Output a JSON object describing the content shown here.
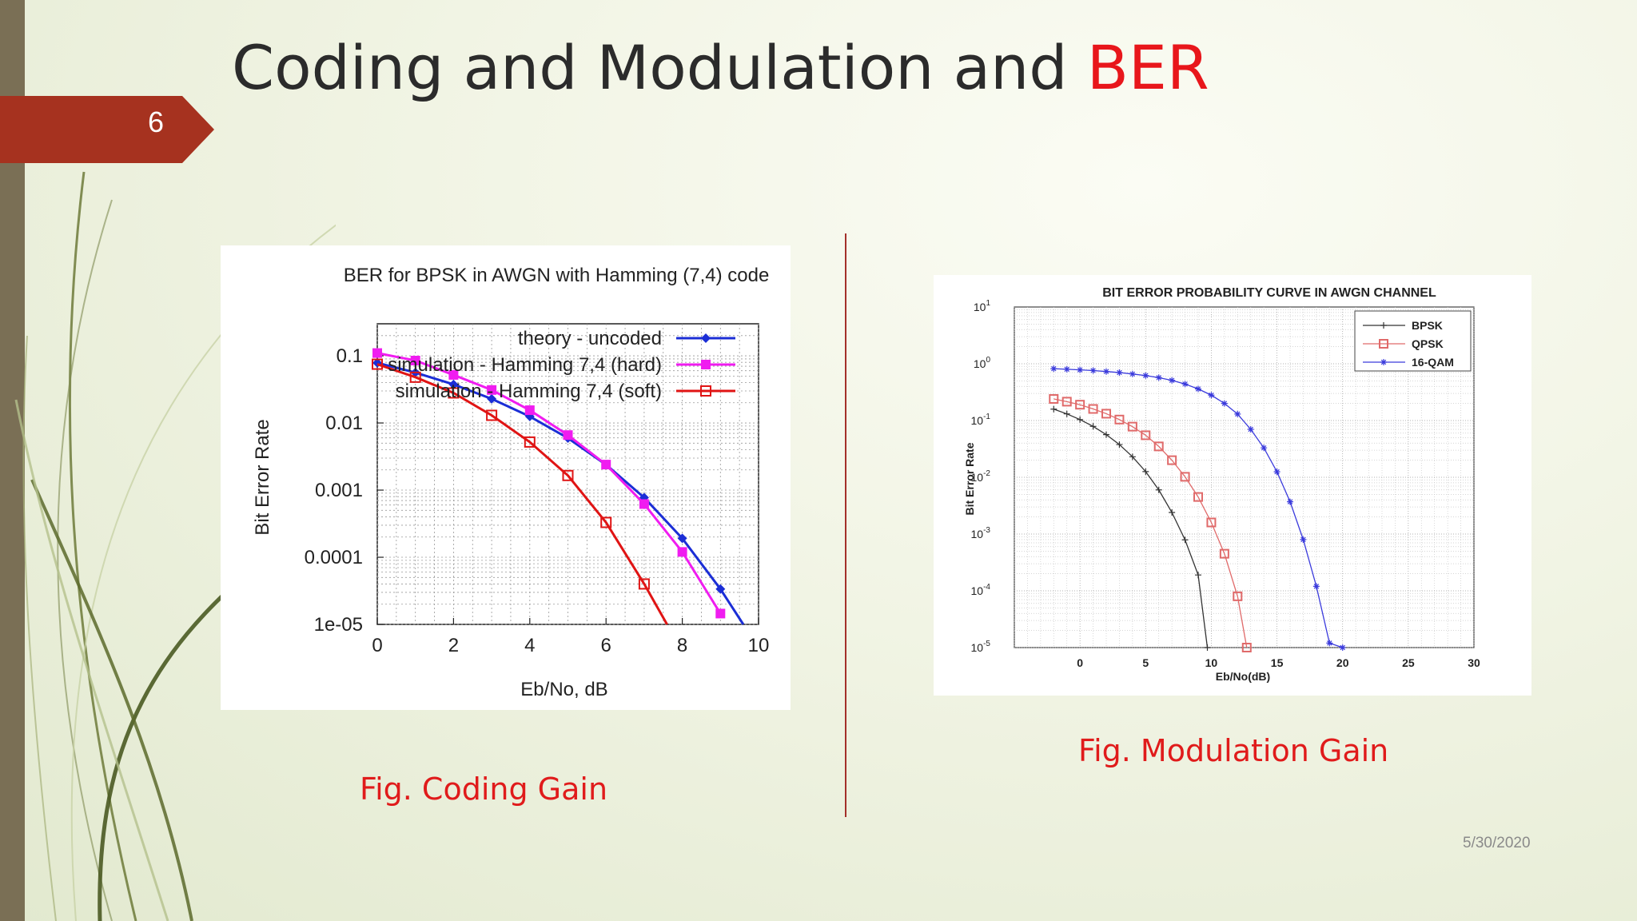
{
  "slide": {
    "number": "6",
    "title_part1": "Coding and Modulation and ",
    "title_part2": "BER",
    "date": "5/30/2020",
    "caption_left": "Fig. Coding Gain",
    "caption_right": "Fig. Modulation Gain"
  },
  "colors": {
    "accent": "#e8161b",
    "tab": "#a6321f",
    "bar": "#7a6f55"
  },
  "chart_data": [
    {
      "type": "line",
      "title": "BER for BPSK in AWGN with Hamming (7,4) code",
      "xlabel": "Eb/No, dB",
      "ylabel": "Bit Error Rate",
      "xlim": [
        0,
        10
      ],
      "ylim": [
        1e-05,
        0.3
      ],
      "yscale": "log",
      "xticks": [
        "0",
        "2",
        "4",
        "6",
        "8",
        "10"
      ],
      "yticks": [
        {
          "v": 0.1,
          "label": "0.1"
        },
        {
          "v": 0.01,
          "label": "0.01"
        },
        {
          "v": 0.001,
          "label": "0.001"
        },
        {
          "v": 0.0001,
          "label": "0.0001"
        },
        {
          "v": 1e-05,
          "label": "1e-05"
        }
      ],
      "grid": true,
      "legend_position": "top-right",
      "series": [
        {
          "name": "theory - uncoded",
          "color": "#1b2ed6",
          "marker": "diamond",
          "x": [
            0,
            1,
            2,
            3,
            4,
            5,
            6,
            7,
            8,
            9,
            9.6
          ],
          "y": [
            0.0786,
            0.0563,
            0.0375,
            0.0229,
            0.0125,
            0.00595,
            0.00239,
            0.000773,
            0.000191,
            3.36e-05,
            1e-05
          ]
        },
        {
          "name": "simulation - Hamming 7,4 (hard)",
          "color": "#f01cf0",
          "marker": "square",
          "x": [
            0,
            1,
            2,
            3,
            4,
            5,
            6,
            7,
            8,
            9
          ],
          "y": [
            0.11,
            0.085,
            0.052,
            0.031,
            0.0155,
            0.0066,
            0.0024,
            0.00062,
            0.00012,
            1.45e-05
          ]
        },
        {
          "name": "simulation - Hamming 7,4 (soft)",
          "color": "#e01414",
          "marker": "open-square",
          "x": [
            0,
            1,
            2,
            3,
            4,
            5,
            6,
            7,
            7.6
          ],
          "y": [
            0.075,
            0.048,
            0.028,
            0.013,
            0.0052,
            0.00165,
            0.00033,
            4e-05,
            1e-05
          ]
        }
      ]
    },
    {
      "type": "line",
      "title": "BIT ERROR PROBABILITY CURVE IN AWGN CHANNEL",
      "xlabel": "Eb/No(dB)",
      "ylabel": "Bit Error Rate",
      "xlim": [
        -5,
        30
      ],
      "ylim": [
        1e-05,
        10
      ],
      "yscale": "log",
      "xticks": [
        "0",
        "5",
        "10",
        "15",
        "20",
        "25",
        "30"
      ],
      "ytick_exponents": [
        "1",
        "0",
        "-1",
        "-2",
        "-3",
        "-4",
        "-5"
      ],
      "grid": true,
      "legend_position": "top-right",
      "series": [
        {
          "name": "BPSK",
          "color": "#333333",
          "marker": "plus",
          "x": [
            -2,
            -1,
            0,
            1,
            2,
            3,
            4,
            5,
            6,
            7,
            8,
            9,
            9.7
          ],
          "y": [
            0.1587,
            0.1309,
            0.104,
            0.0789,
            0.0565,
            0.0377,
            0.023,
            0.0126,
            0.006,
            0.0024,
            0.00079,
            0.00019,
            1e-05
          ]
        },
        {
          "name": "QPSK",
          "color": "#e06a6a",
          "marker": "open-square",
          "x": [
            -2,
            -1,
            0,
            1,
            2,
            3,
            4,
            5,
            6,
            7,
            8,
            9,
            10,
            11,
            12,
            12.7
          ],
          "y": [
            0.24,
            0.215,
            0.19,
            0.16,
            0.132,
            0.104,
            0.078,
            0.055,
            0.035,
            0.02,
            0.0102,
            0.0045,
            0.0016,
            0.00045,
            8e-05,
            1e-05
          ]
        },
        {
          "name": "16-QAM",
          "color": "#3a3adc",
          "marker": "asterisk",
          "x": [
            -2,
            -1,
            0,
            1,
            2,
            3,
            4,
            5,
            6,
            7,
            8,
            9,
            10,
            11,
            12,
            13,
            14,
            15,
            16,
            17,
            18,
            19,
            20
          ],
          "y": [
            0.82,
            0.8,
            0.78,
            0.76,
            0.73,
            0.7,
            0.66,
            0.62,
            0.57,
            0.51,
            0.44,
            0.36,
            0.28,
            0.2,
            0.13,
            0.07,
            0.033,
            0.0125,
            0.0037,
            0.0008,
            0.00012,
            1.2e-05,
            1e-05
          ]
        }
      ]
    }
  ]
}
